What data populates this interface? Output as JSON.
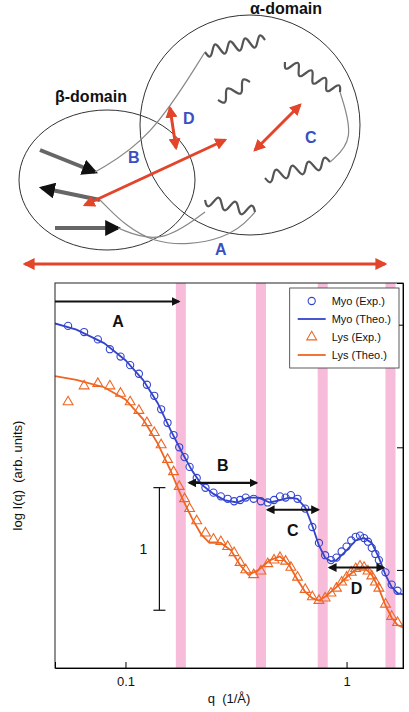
{
  "chart_data": {
    "type": "scatter",
    "x_label": "q  (1/Å)",
    "y_label": "log I(q)  (arb. units)",
    "log": "x",
    "xlim": [
      0.048,
      1.8
    ],
    "xticks": [
      0.1,
      1
    ],
    "ylim": [
      0,
      3.14
    ],
    "yticks": [
      0.8,
      1.8,
      2.8
    ],
    "tick_labels": "x",
    "legend": "top-right",
    "bands": [
      0.178,
      0.41,
      0.78,
      1.58
    ],
    "ranges": [
      {
        "label": "A",
        "from": 0.048,
        "to": 0.178
      },
      {
        "label": "B",
        "from": 0.19,
        "to": 0.4
      },
      {
        "label": "C",
        "from": 0.43,
        "to": 0.76
      },
      {
        "label": "D",
        "from": 0.82,
        "to": 1.5
      }
    ],
    "scale_bar": 1,
    "series": [
      {
        "name": "Myo (Exp.)",
        "type": "scatter",
        "marker": "circle",
        "color": "#3344cc",
        "x": [
          0.055,
          0.065,
          0.075,
          0.085,
          0.095,
          0.105,
          0.115,
          0.125,
          0.135,
          0.145,
          0.155,
          0.165,
          0.175,
          0.185,
          0.195,
          0.21,
          0.23,
          0.25,
          0.27,
          0.29,
          0.31,
          0.33,
          0.35,
          0.38,
          0.41,
          0.44,
          0.47,
          0.5,
          0.53,
          0.56,
          0.6,
          0.65,
          0.7,
          0.75,
          0.8,
          0.85,
          0.9,
          0.95,
          1.0,
          1.05,
          1.1,
          1.15,
          1.2,
          1.25,
          1.3,
          1.35,
          1.4,
          1.5,
          1.6,
          1.7
        ],
        "values": [
          2.79,
          2.74,
          2.68,
          2.6,
          2.54,
          2.47,
          2.4,
          2.31,
          2.22,
          2.11,
          2.0,
          1.9,
          1.8,
          1.72,
          1.64,
          1.55,
          1.47,
          1.43,
          1.4,
          1.38,
          1.36,
          1.37,
          1.39,
          1.38,
          1.36,
          1.35,
          1.37,
          1.4,
          1.39,
          1.41,
          1.38,
          1.3,
          1.15,
          1.02,
          0.92,
          0.88,
          0.9,
          0.95,
          0.99,
          1.04,
          1.07,
          1.08,
          1.06,
          1.03,
          0.98,
          0.93,
          0.88,
          0.78,
          0.68,
          0.63
        ]
      },
      {
        "name": "Myo (Theo.)",
        "type": "line",
        "line_style": "solid",
        "color": "#3344cc",
        "x": [
          0.048,
          0.06,
          0.08,
          0.1,
          0.12,
          0.14,
          0.16,
          0.18,
          0.2,
          0.22,
          0.25,
          0.28,
          0.32,
          0.36,
          0.4,
          0.45,
          0.5,
          0.55,
          0.6,
          0.65,
          0.7,
          0.75,
          0.8,
          0.85,
          0.9,
          1.0,
          1.1,
          1.2,
          1.3,
          1.4,
          1.5,
          1.6,
          1.7,
          1.8
        ],
        "values": [
          2.81,
          2.76,
          2.65,
          2.51,
          2.35,
          2.16,
          1.94,
          1.76,
          1.61,
          1.5,
          1.42,
          1.37,
          1.35,
          1.39,
          1.39,
          1.35,
          1.37,
          1.39,
          1.38,
          1.31,
          1.16,
          1.0,
          0.9,
          0.87,
          0.88,
          0.96,
          1.04,
          1.06,
          1.02,
          0.9,
          0.76,
          0.66,
          0.61,
          0.6
        ]
      },
      {
        "name": "Lys (Exp.)",
        "type": "scatter",
        "marker": "triangle",
        "color": "#ee6622",
        "x": [
          0.055,
          0.065,
          0.075,
          0.085,
          0.095,
          0.105,
          0.115,
          0.125,
          0.135,
          0.145,
          0.155,
          0.165,
          0.175,
          0.185,
          0.195,
          0.21,
          0.23,
          0.25,
          0.27,
          0.29,
          0.31,
          0.33,
          0.35,
          0.38,
          0.41,
          0.44,
          0.47,
          0.5,
          0.53,
          0.56,
          0.6,
          0.65,
          0.7,
          0.75,
          0.8,
          0.85,
          0.9,
          0.95,
          1.0,
          1.05,
          1.1,
          1.15,
          1.2,
          1.25,
          1.3,
          1.35,
          1.4,
          1.5,
          1.6,
          1.7
        ],
        "values": [
          2.17,
          2.3,
          2.32,
          2.3,
          2.24,
          2.17,
          2.1,
          2.0,
          1.92,
          1.82,
          1.7,
          1.6,
          1.48,
          1.38,
          1.3,
          1.2,
          1.1,
          1.05,
          1.03,
          0.99,
          0.94,
          0.86,
          0.8,
          0.76,
          0.79,
          0.85,
          0.88,
          0.9,
          0.87,
          0.82,
          0.74,
          0.64,
          0.58,
          0.55,
          0.57,
          0.61,
          0.65,
          0.7,
          0.74,
          0.78,
          0.81,
          0.83,
          0.82,
          0.79,
          0.75,
          0.7,
          0.65,
          0.52,
          0.42,
          0.37
        ]
      },
      {
        "name": "Lys (Theo.)",
        "type": "line",
        "line_style": "solid",
        "color": "#ee6622",
        "x": [
          0.048,
          0.06,
          0.08,
          0.1,
          0.12,
          0.14,
          0.16,
          0.18,
          0.2,
          0.22,
          0.24,
          0.27,
          0.3,
          0.33,
          0.36,
          0.4,
          0.45,
          0.5,
          0.55,
          0.6,
          0.65,
          0.7,
          0.75,
          0.8,
          0.9,
          1.0,
          1.1,
          1.2,
          1.3,
          1.4,
          1.5,
          1.6,
          1.7,
          1.8
        ],
        "values": [
          2.38,
          2.35,
          2.29,
          2.19,
          2.03,
          1.83,
          1.61,
          1.39,
          1.22,
          1.09,
          1.02,
          1.02,
          0.96,
          0.84,
          0.76,
          0.8,
          0.88,
          0.91,
          0.84,
          0.72,
          0.62,
          0.57,
          0.55,
          0.58,
          0.66,
          0.74,
          0.8,
          0.82,
          0.76,
          0.65,
          0.51,
          0.41,
          0.35,
          0.33
        ]
      }
    ]
  },
  "diagram": {
    "domains": [
      "α-domain",
      "β-domain"
    ],
    "distances": [
      "A",
      "B",
      "C",
      "D"
    ]
  }
}
